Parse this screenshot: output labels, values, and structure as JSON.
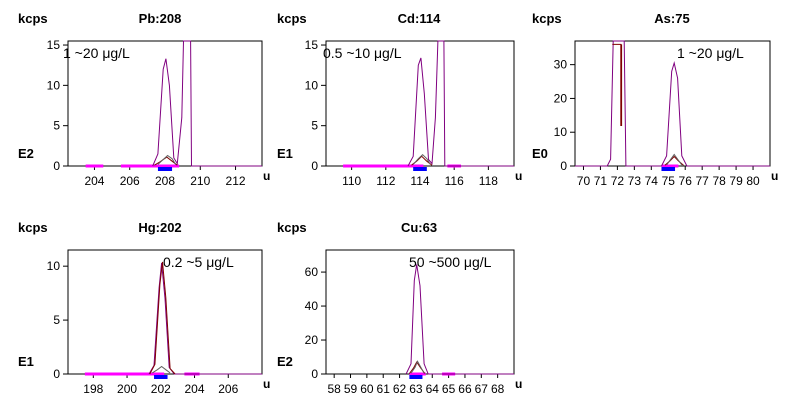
{
  "chart_data": [
    {
      "type": "line",
      "title": "Pb:208",
      "ylabel": "kcps",
      "xlabel": "u",
      "scale_label": "E2",
      "annotation": "1 ~20 μg/L",
      "xlim": [
        202.5,
        213.5
      ],
      "ylim": [
        0,
        15.5
      ],
      "xticks": [
        204,
        206,
        208,
        210,
        212
      ],
      "yticks": [
        0,
        5,
        10,
        15
      ],
      "bands": [
        {
          "x": [
            203.5,
            204.5
          ],
          "color": "#ff00ff"
        },
        {
          "x": [
            205.5,
            208.8
          ],
          "color": "#ff00ff"
        },
        {
          "x": [
            207.6,
            208.4
          ],
          "color": "#0000ff"
        }
      ],
      "series": [
        {
          "color": "#800080",
          "points": [
            [
              207.3,
              0
            ],
            [
              207.6,
              1.5
            ],
            [
              207.9,
              12
            ],
            [
              208.05,
              13.3
            ],
            [
              208.25,
              10
            ],
            [
              208.5,
              1
            ],
            [
              208.7,
              0.3
            ],
            [
              208.95,
              6
            ],
            [
              209.05,
              15.5
            ],
            [
              209.45,
              15.5
            ],
            [
              209.5,
              0
            ],
            [
              213.5,
              0
            ]
          ]
        },
        {
          "color": "#800000",
          "points": [
            [
              207.4,
              0.1
            ],
            [
              207.7,
              0.5
            ],
            [
              208.1,
              1.1
            ],
            [
              208.4,
              0.6
            ],
            [
              208.7,
              0.1
            ]
          ]
        },
        {
          "color": "#606060",
          "points": [
            [
              207.6,
              0.2
            ],
            [
              207.9,
              0.8
            ],
            [
              208.15,
              1.3
            ],
            [
              208.4,
              0.9
            ],
            [
              208.6,
              0.2
            ]
          ]
        }
      ]
    },
    {
      "type": "line",
      "title": "Cd:114",
      "ylabel": "kcps",
      "xlabel": "u",
      "scale_label": "E1",
      "annotation": "0.5 ~10 μg/L",
      "xlim": [
        108.5,
        119.5
      ],
      "ylim": [
        0,
        15.5
      ],
      "xticks": [
        110,
        112,
        114,
        116,
        118
      ],
      "yticks": [
        0,
        5,
        10,
        15
      ],
      "bands": [
        {
          "x": [
            109.5,
            114.2
          ],
          "color": "#ff00ff"
        },
        {
          "x": [
            115.6,
            116.4
          ],
          "color": "#ff00ff"
        },
        {
          "x": [
            113.6,
            114.4
          ],
          "color": "#0000ff"
        }
      ],
      "series": [
        {
          "color": "#800080",
          "points": [
            [
              113.3,
              0
            ],
            [
              113.6,
              1.2
            ],
            [
              113.9,
              12.5
            ],
            [
              114.05,
              13.4
            ],
            [
              114.25,
              9
            ],
            [
              114.5,
              0.8
            ],
            [
              114.7,
              0.3
            ],
            [
              114.9,
              6
            ],
            [
              115.05,
              15.5
            ],
            [
              115.4,
              15.5
            ],
            [
              115.45,
              0
            ],
            [
              119.5,
              0
            ]
          ]
        },
        {
          "color": "#800000",
          "points": [
            [
              113.5,
              0.1
            ],
            [
              113.8,
              0.6
            ],
            [
              114.1,
              1.2
            ],
            [
              114.4,
              0.6
            ],
            [
              114.7,
              0.1
            ]
          ]
        },
        {
          "color": "#606060",
          "points": [
            [
              113.6,
              0.2
            ],
            [
              113.9,
              0.9
            ],
            [
              114.15,
              1.4
            ],
            [
              114.4,
              0.9
            ],
            [
              114.6,
              0.2
            ]
          ]
        }
      ]
    },
    {
      "type": "line",
      "title": "As:75",
      "ylabel": "kcps",
      "xlabel": "u",
      "scale_label": "E0",
      "annotation": "1 ~20 μg/L",
      "xlim": [
        69.5,
        81
      ],
      "ylim": [
        0,
        37
      ],
      "xticks": [
        70,
        71,
        72,
        73,
        74,
        75,
        76,
        77,
        78,
        79,
        80
      ],
      "yticks": [
        0,
        10,
        20,
        30
      ],
      "bands": [
        {
          "x": [
            74.6,
            75.6
          ],
          "color": "#ff00ff"
        },
        {
          "x": [
            74.6,
            75.4
          ],
          "color": "#0000ff"
        }
      ],
      "series": [
        {
          "color": "#800080",
          "points": [
            [
              69.5,
              0
            ],
            [
              71.4,
              0
            ],
            [
              71.6,
              2
            ],
            [
              71.75,
              37
            ],
            [
              72.4,
              37
            ],
            [
              72.5,
              0
            ],
            [
              74.6,
              0
            ],
            [
              74.9,
              3
            ],
            [
              75.2,
              28
            ],
            [
              75.35,
              30.5
            ],
            [
              75.55,
              26
            ],
            [
              75.8,
              3
            ],
            [
              76.1,
              0
            ],
            [
              81,
              0
            ]
          ]
        },
        {
          "color": "#800000",
          "points": [
            [
              71.7,
              36
            ],
            [
              72.2,
              36
            ],
            [
              72.2,
              12
            ],
            [
              72.25,
              12
            ],
            [
              72.25,
              36
            ]
          ]
        },
        {
          "color": "#800000",
          "points": [
            [
              74.8,
              0.2
            ],
            [
              75.1,
              1.5
            ],
            [
              75.35,
              2.8
            ],
            [
              75.6,
              1.5
            ],
            [
              75.9,
              0.2
            ]
          ]
        },
        {
          "color": "#606060",
          "points": [
            [
              74.9,
              0.3
            ],
            [
              75.15,
              2
            ],
            [
              75.35,
              3.4
            ],
            [
              75.55,
              2
            ],
            [
              75.8,
              0.3
            ]
          ]
        }
      ]
    },
    {
      "type": "line",
      "title": "Hg:202",
      "ylabel": "kcps",
      "xlabel": "u",
      "scale_label": "E1",
      "annotation": "0.2 ~5 μg/L",
      "xlim": [
        196.5,
        208
      ],
      "ylim": [
        0,
        11.5
      ],
      "xticks": [
        198,
        200,
        202,
        204,
        206
      ],
      "yticks": [
        0,
        5,
        10
      ],
      "bands": [
        {
          "x": [
            197.5,
            202.2
          ],
          "color": "#ff00ff"
        },
        {
          "x": [
            203.4,
            204.3
          ],
          "color": "#ff00ff"
        },
        {
          "x": [
            201.6,
            202.4
          ],
          "color": "#0000ff"
        }
      ],
      "series": [
        {
          "color": "#800080",
          "points": [
            [
              201.3,
              0
            ],
            [
              201.6,
              0.8
            ],
            [
              201.9,
              8
            ],
            [
              202.05,
              10.3
            ],
            [
              202.25,
              7
            ],
            [
              202.5,
              0.6
            ],
            [
              202.8,
              0
            ],
            [
              208,
              0
            ]
          ]
        },
        {
          "color": "#800000",
          "points": [
            [
              201.35,
              0
            ],
            [
              201.65,
              0.9
            ],
            [
              201.95,
              8.3
            ],
            [
              202.1,
              10.4
            ],
            [
              202.3,
              7.1
            ],
            [
              202.55,
              0.5
            ],
            [
              202.85,
              0
            ]
          ]
        },
        {
          "color": "#606060",
          "points": [
            [
              201.5,
              0.1
            ],
            [
              201.8,
              0.4
            ],
            [
              202.05,
              0.7
            ],
            [
              202.3,
              0.4
            ],
            [
              202.55,
              0.1
            ]
          ]
        }
      ]
    },
    {
      "type": "line",
      "title": "Cu:63",
      "ylabel": "kcps",
      "xlabel": "u",
      "scale_label": "E2",
      "annotation": "50 ~500 μg/L",
      "xlim": [
        57.5,
        69
      ],
      "ylim": [
        0,
        73
      ],
      "xticks": [
        58,
        59,
        60,
        61,
        62,
        63,
        64,
        65,
        66,
        67,
        68
      ],
      "yticks": [
        0,
        20,
        40,
        60
      ],
      "bands": [
        {
          "x": [
            62.6,
            63.6
          ],
          "color": "#ff00ff"
        },
        {
          "x": [
            64.6,
            65.4
          ],
          "color": "#ff00ff"
        },
        {
          "x": [
            62.6,
            63.4
          ],
          "color": "#0000ff"
        }
      ],
      "series": [
        {
          "color": "#800080",
          "points": [
            [
              62.4,
              0
            ],
            [
              62.7,
              6
            ],
            [
              62.9,
              55
            ],
            [
              63.05,
              64.5
            ],
            [
              63.25,
              52
            ],
            [
              63.5,
              6
            ],
            [
              63.75,
              0
            ],
            [
              69,
              0
            ]
          ]
        },
        {
          "color": "#800000",
          "points": [
            [
              62.6,
              0.3
            ],
            [
              62.85,
              3.5
            ],
            [
              63.05,
              7
            ],
            [
              63.3,
              3.5
            ],
            [
              63.55,
              0.3
            ]
          ]
        },
        {
          "color": "#606060",
          "points": [
            [
              62.7,
              0.5
            ],
            [
              62.95,
              4
            ],
            [
              63.1,
              7.5
            ],
            [
              63.3,
              4
            ],
            [
              63.5,
              0.5
            ]
          ]
        }
      ]
    }
  ]
}
